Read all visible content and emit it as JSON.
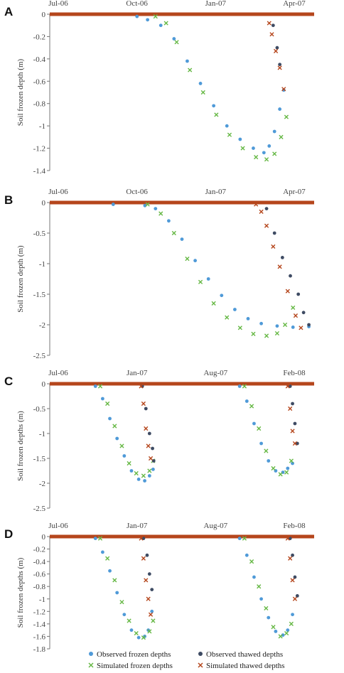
{
  "colors": {
    "observed_frozen": "#4f9ad8",
    "observed_thawed": "#3e4b63",
    "simulated_frozen": "#66b845",
    "simulated_thawed": "#b5461c",
    "baseline": "#b5461c",
    "axis": "#777777"
  },
  "legend": {
    "items": [
      {
        "key": "observed_frozen",
        "label": "Observed frozen depths",
        "marker": "dot"
      },
      {
        "key": "observed_thawed",
        "label": "Observed thawed depths",
        "marker": "dot"
      },
      {
        "key": "simulated_frozen",
        "label": "Simulated frozen depths",
        "marker": "x"
      },
      {
        "key": "simulated_thawed",
        "label": "Simulated thawed depths",
        "marker": "x"
      }
    ]
  },
  "chart_data": [
    {
      "panel": "A",
      "type": "scatter",
      "ylabel": "Soil frozen depth (m)",
      "ylim": [
        -1.4,
        0
      ],
      "yticks": [
        0,
        -0.2,
        -0.4,
        -0.6,
        -0.8,
        -1,
        -1.2,
        -1.4
      ],
      "ytick_labels": [
        "0",
        "-0.2",
        "-0.4",
        "-0.6",
        "-0.8",
        "-1",
        "-1.2",
        "-1.4"
      ],
      "x_tick_labels": [
        "Jul-06",
        "Oct-06",
        "Jan-07",
        "Apr-07"
      ],
      "xrange_months": [
        0,
        10
      ],
      "series": [
        {
          "name": "Observed frozen depths",
          "key": "observed_frozen",
          "points": [
            [
              3.3,
              -0.02
            ],
            [
              3.7,
              -0.05
            ],
            [
              4.2,
              -0.1
            ],
            [
              4.7,
              -0.22
            ],
            [
              5.2,
              -0.42
            ],
            [
              5.7,
              -0.62
            ],
            [
              6.2,
              -0.82
            ],
            [
              6.7,
              -1.0
            ],
            [
              7.2,
              -1.12
            ],
            [
              7.7,
              -1.2
            ],
            [
              8.1,
              -1.24
            ],
            [
              8.3,
              -1.18
            ],
            [
              8.5,
              -1.05
            ],
            [
              8.7,
              -0.85
            ],
            [
              8.85,
              -0.68
            ]
          ]
        },
        {
          "name": "Simulated frozen depths",
          "key": "simulated_frozen",
          "points": [
            [
              4.0,
              -0.02
            ],
            [
              4.4,
              -0.08
            ],
            [
              4.8,
              -0.25
            ],
            [
              5.3,
              -0.5
            ],
            [
              5.8,
              -0.7
            ],
            [
              6.3,
              -0.9
            ],
            [
              6.8,
              -1.08
            ],
            [
              7.3,
              -1.2
            ],
            [
              7.8,
              -1.28
            ],
            [
              8.2,
              -1.3
            ],
            [
              8.5,
              -1.25
            ],
            [
              8.75,
              -1.1
            ],
            [
              8.95,
              -0.92
            ]
          ]
        },
        {
          "name": "Observed thawed depths",
          "key": "observed_thawed",
          "points": [
            [
              8.45,
              -0.1
            ],
            [
              8.6,
              -0.3
            ],
            [
              8.7,
              -0.45
            ]
          ]
        },
        {
          "name": "Simulated thawed depths",
          "key": "simulated_thawed",
          "points": [
            [
              8.3,
              -0.08
            ],
            [
              8.4,
              -0.18
            ],
            [
              8.55,
              -0.33
            ],
            [
              8.7,
              -0.48
            ],
            [
              8.85,
              -0.67
            ]
          ]
        }
      ]
    },
    {
      "panel": "B",
      "type": "scatter",
      "ylabel": "Soil frozen depth (m)",
      "ylim": [
        -2.5,
        0
      ],
      "yticks": [
        0,
        -0.5,
        -1,
        -1.5,
        -2,
        -2.5
      ],
      "ytick_labels": [
        "0",
        "-0.5",
        "-1",
        "-1.5",
        "-2",
        "-2.5"
      ],
      "x_tick_labels": [
        "Jul-06",
        "Oct-06",
        "Jan-07",
        "Apr-07"
      ],
      "xrange_months": [
        0,
        10
      ],
      "series": [
        {
          "name": "Observed frozen depths",
          "key": "observed_frozen",
          "points": [
            [
              2.4,
              -0.03
            ],
            [
              3.6,
              -0.05
            ],
            [
              4.0,
              -0.1
            ],
            [
              4.5,
              -0.3
            ],
            [
              5.0,
              -0.6
            ],
            [
              5.5,
              -0.95
            ],
            [
              6.0,
              -1.25
            ],
            [
              6.5,
              -1.52
            ],
            [
              7.0,
              -1.75
            ],
            [
              7.5,
              -1.9
            ],
            [
              8.0,
              -1.98
            ],
            [
              8.6,
              -2.02
            ],
            [
              9.2,
              -2.04
            ],
            [
              9.8,
              -2.03
            ]
          ]
        },
        {
          "name": "Simulated frozen depths",
          "key": "simulated_frozen",
          "points": [
            [
              3.7,
              -0.03
            ],
            [
              4.2,
              -0.18
            ],
            [
              4.7,
              -0.5
            ],
            [
              5.2,
              -0.92
            ],
            [
              5.7,
              -1.3
            ],
            [
              6.2,
              -1.65
            ],
            [
              6.7,
              -1.88
            ],
            [
              7.2,
              -2.05
            ],
            [
              7.7,
              -2.15
            ],
            [
              8.2,
              -2.18
            ],
            [
              8.6,
              -2.14
            ],
            [
              8.9,
              -2.0
            ],
            [
              9.2,
              -1.72
            ]
          ]
        },
        {
          "name": "Observed thawed depths",
          "key": "observed_thawed",
          "points": [
            [
              8.2,
              -0.1
            ],
            [
              8.5,
              -0.5
            ],
            [
              8.8,
              -0.9
            ],
            [
              9.1,
              -1.2
            ],
            [
              9.4,
              -1.5
            ],
            [
              9.6,
              -1.8
            ],
            [
              9.8,
              -2.0
            ]
          ]
        },
        {
          "name": "Simulated thawed depths",
          "key": "simulated_thawed",
          "points": [
            [
              7.8,
              -0.03
            ],
            [
              8.0,
              -0.15
            ],
            [
              8.2,
              -0.38
            ],
            [
              8.45,
              -0.72
            ],
            [
              8.7,
              -1.05
            ],
            [
              9.0,
              -1.45
            ],
            [
              9.3,
              -1.85
            ],
            [
              9.5,
              -2.05
            ]
          ]
        }
      ]
    },
    {
      "panel": "C",
      "type": "scatter",
      "ylabel": "Soil frozen depths (m)",
      "ylim": [
        -2.5,
        0
      ],
      "yticks": [
        0,
        -0.5,
        -1,
        -1.5,
        -2,
        -2.5
      ],
      "ytick_labels": [
        "0",
        "-0.5",
        "-1",
        "-1.5",
        "-2",
        "-2.5"
      ],
      "x_tick_labels": [
        "Jul-06",
        "Jan-07",
        "Aug-07",
        "Feb-08"
      ],
      "xrange_months": [
        0,
        22
      ],
      "series": [
        {
          "name": "Observed frozen depths",
          "key": "observed_frozen",
          "points": [
            [
              3.8,
              -0.05
            ],
            [
              4.4,
              -0.3
            ],
            [
              5.0,
              -0.7
            ],
            [
              5.6,
              -1.1
            ],
            [
              6.2,
              -1.45
            ],
            [
              6.8,
              -1.75
            ],
            [
              7.4,
              -1.92
            ],
            [
              7.9,
              -1.95
            ],
            [
              8.3,
              -1.85
            ],
            [
              8.6,
              -1.72
            ],
            [
              15.8,
              -0.05
            ],
            [
              16.4,
              -0.35
            ],
            [
              17.0,
              -0.8
            ],
            [
              17.6,
              -1.2
            ],
            [
              18.2,
              -1.55
            ],
            [
              18.8,
              -1.75
            ],
            [
              19.4,
              -1.78
            ],
            [
              19.8,
              -1.7
            ],
            [
              20.2,
              -1.6
            ]
          ]
        },
        {
          "name": "Simulated frozen depths",
          "key": "simulated_frozen",
          "points": [
            [
              4.2,
              -0.05
            ],
            [
              4.8,
              -0.4
            ],
            [
              5.4,
              -0.85
            ],
            [
              6.0,
              -1.25
            ],
            [
              6.6,
              -1.6
            ],
            [
              7.2,
              -1.8
            ],
            [
              7.8,
              -1.85
            ],
            [
              8.3,
              -1.75
            ],
            [
              8.6,
              -1.55
            ],
            [
              16.2,
              -0.05
            ],
            [
              16.8,
              -0.45
            ],
            [
              17.4,
              -0.9
            ],
            [
              18.0,
              -1.35
            ],
            [
              18.6,
              -1.7
            ],
            [
              19.2,
              -1.82
            ],
            [
              19.7,
              -1.78
            ],
            [
              20.1,
              -1.55
            ]
          ]
        },
        {
          "name": "Observed thawed depths",
          "key": "observed_thawed",
          "points": [
            [
              7.7,
              -0.05
            ],
            [
              8.0,
              -0.5
            ],
            [
              8.3,
              -1.0
            ],
            [
              8.55,
              -1.3
            ],
            [
              8.65,
              -1.55
            ],
            [
              20.0,
              -0.05
            ],
            [
              20.2,
              -0.4
            ],
            [
              20.4,
              -0.8
            ],
            [
              20.6,
              -1.2
            ]
          ]
        },
        {
          "name": "Simulated thawed depths",
          "key": "simulated_thawed",
          "points": [
            [
              7.6,
              -0.05
            ],
            [
              7.8,
              -0.4
            ],
            [
              8.0,
              -0.9
            ],
            [
              8.2,
              -1.25
            ],
            [
              8.4,
              -1.5
            ],
            [
              19.8,
              -0.05
            ],
            [
              20.0,
              -0.5
            ],
            [
              20.2,
              -0.95
            ],
            [
              20.4,
              -1.2
            ]
          ]
        }
      ]
    },
    {
      "panel": "D",
      "type": "scatter",
      "ylabel": "Soil frozen depths (m)",
      "ylim": [
        -1.8,
        0
      ],
      "yticks": [
        0,
        -0.2,
        -0.4,
        -0.6,
        -0.8,
        -1,
        -1.2,
        -1.4,
        -1.6,
        -1.8
      ],
      "ytick_labels": [
        "0",
        "-0.2",
        "-0.4",
        "-0.6",
        "-0.8",
        "-1",
        "-1.2",
        "-1.4",
        "-1.6",
        "-1.8"
      ],
      "x_tick_labels": [
        "Jul-06",
        "Jan-07",
        "Aug-07",
        "Feb-08"
      ],
      "xrange_months": [
        0,
        22
      ],
      "series": [
        {
          "name": "Observed frozen depths",
          "key": "observed_frozen",
          "points": [
            [
              3.8,
              -0.03
            ],
            [
              4.4,
              -0.25
            ],
            [
              5.0,
              -0.55
            ],
            [
              5.6,
              -0.9
            ],
            [
              6.2,
              -1.25
            ],
            [
              6.8,
              -1.5
            ],
            [
              7.4,
              -1.62
            ],
            [
              7.9,
              -1.6
            ],
            [
              8.2,
              -1.5
            ],
            [
              8.5,
              -1.2
            ],
            [
              15.8,
              -0.03
            ],
            [
              16.4,
              -0.3
            ],
            [
              17.0,
              -0.65
            ],
            [
              17.6,
              -1.0
            ],
            [
              18.2,
              -1.3
            ],
            [
              18.8,
              -1.52
            ],
            [
              19.4,
              -1.58
            ],
            [
              19.8,
              -1.5
            ],
            [
              20.2,
              -1.25
            ]
          ]
        },
        {
          "name": "Simulated frozen depths",
          "key": "simulated_frozen",
          "points": [
            [
              4.2,
              -0.03
            ],
            [
              4.8,
              -0.35
            ],
            [
              5.4,
              -0.7
            ],
            [
              6.0,
              -1.05
            ],
            [
              6.6,
              -1.35
            ],
            [
              7.2,
              -1.55
            ],
            [
              7.8,
              -1.62
            ],
            [
              8.3,
              -1.52
            ],
            [
              8.6,
              -1.35
            ],
            [
              16.2,
              -0.03
            ],
            [
              16.8,
              -0.4
            ],
            [
              17.4,
              -0.8
            ],
            [
              18.0,
              -1.15
            ],
            [
              18.6,
              -1.45
            ],
            [
              19.2,
              -1.6
            ],
            [
              19.7,
              -1.55
            ],
            [
              20.1,
              -1.4
            ]
          ]
        },
        {
          "name": "Observed thawed depths",
          "key": "observed_thawed",
          "points": [
            [
              7.8,
              -0.03
            ],
            [
              8.1,
              -0.3
            ],
            [
              8.3,
              -0.6
            ],
            [
              8.5,
              -0.85
            ],
            [
              20.0,
              -0.03
            ],
            [
              20.2,
              -0.3
            ],
            [
              20.4,
              -0.65
            ],
            [
              20.6,
              -0.95
            ]
          ]
        },
        {
          "name": "Simulated thawed depths",
          "key": "simulated_thawed",
          "points": [
            [
              7.6,
              -0.03
            ],
            [
              7.8,
              -0.35
            ],
            [
              8.0,
              -0.7
            ],
            [
              8.2,
              -1.0
            ],
            [
              8.4,
              -1.25
            ],
            [
              19.8,
              -0.03
            ],
            [
              20.0,
              -0.35
            ],
            [
              20.2,
              -0.7
            ],
            [
              20.4,
              -1.0
            ]
          ]
        }
      ]
    }
  ]
}
